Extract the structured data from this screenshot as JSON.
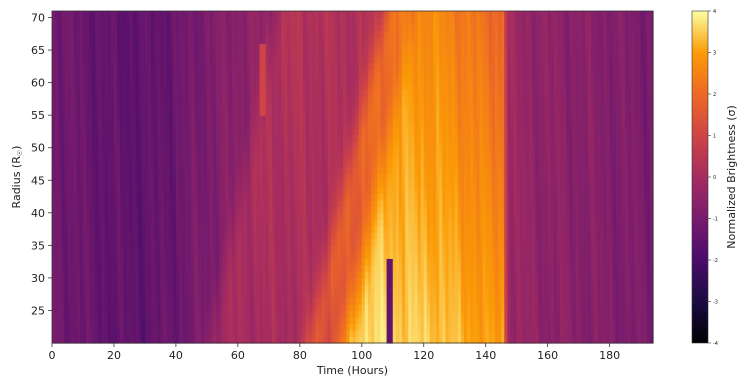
{
  "chart_data": {
    "type": "heatmap",
    "title": "",
    "xlabel": "Time (Hours)",
    "ylabel": "Radius (R",
    "ylabel_sub": "☉",
    "ylabel_close": ")",
    "xlim": [
      0,
      194
    ],
    "ylim": [
      20,
      71
    ],
    "x_ticks": [
      0,
      20,
      40,
      60,
      80,
      100,
      120,
      140,
      160,
      180
    ],
    "x_tick_labels": [
      "0",
      "20",
      "40",
      "60",
      "80",
      "100",
      "120",
      "140",
      "160",
      "180"
    ],
    "y_ticks": [
      25,
      30,
      35,
      40,
      45,
      50,
      55,
      60,
      65,
      70
    ],
    "y_tick_labels": [
      "25",
      "30",
      "35",
      "40",
      "45",
      "50",
      "55",
      "60",
      "65",
      "70"
    ],
    "colorbar": {
      "label": "Normalized Brightness (σ)",
      "range": [
        -4,
        4
      ],
      "ticks": [
        -4,
        -3,
        -2,
        -1,
        0,
        1,
        2,
        3,
        4
      ],
      "tick_labels": [
        "-4",
        "-3",
        "-2",
        "-1",
        "0",
        "1",
        "2",
        "3",
        "4"
      ],
      "colormap": "inferno"
    },
    "colormap_stops": [
      {
        "v": 0.0,
        "color": "#000004"
      },
      {
        "v": 0.125,
        "color": "#1b0c41"
      },
      {
        "v": 0.25,
        "color": "#4a0c6b"
      },
      {
        "v": 0.375,
        "color": "#781c6d"
      },
      {
        "v": 0.5,
        "color": "#a52c60"
      },
      {
        "v": 0.625,
        "color": "#cf4446"
      },
      {
        "v": 0.75,
        "color": "#ed6925"
      },
      {
        "v": 0.875,
        "color": "#fb9b06"
      },
      {
        "v": 1.0,
        "color": "#fcffa4"
      }
    ],
    "background_brightness": [
      {
        "t": 0,
        "b": -1.1
      },
      {
        "t": 10,
        "b": -1.3
      },
      {
        "t": 20,
        "b": -1.5
      },
      {
        "t": 30,
        "b": -1.5
      },
      {
        "t": 40,
        "b": -1.3
      },
      {
        "t": 47,
        "b": -1.0
      },
      {
        "t": 60,
        "b": -0.6
      },
      {
        "t": 80,
        "b": -0.3
      },
      {
        "t": 95,
        "b": -0.2
      },
      {
        "t": 110,
        "b": -0.1
      },
      {
        "t": 125,
        "b": 0.0
      },
      {
        "t": 145,
        "b": -0.3
      },
      {
        "t": 160,
        "b": -0.6
      },
      {
        "t": 180,
        "b": -0.8
      },
      {
        "t": 194,
        "b": -1.0
      }
    ],
    "features": [
      {
        "name": "bright-front",
        "t_at_r20": 100,
        "t_at_r71": 120,
        "t_end_r20": 145,
        "t_end_r71": 145,
        "peak": 3.3
      },
      {
        "name": "leading-fan",
        "t_at_r20": 48,
        "t_at_r71": 70,
        "peak": 0.8
      },
      {
        "name": "mid-stripe",
        "t_at_r20": 85,
        "t_at_r71": 110,
        "peak": 1.2
      },
      {
        "name": "dark-streak",
        "t": 109,
        "r_min": 20,
        "r_max": 33,
        "value": -1.5
      },
      {
        "name": "light-streak",
        "t": 68,
        "r_min": 55,
        "r_max": 66,
        "value": 1.0
      }
    ]
  }
}
